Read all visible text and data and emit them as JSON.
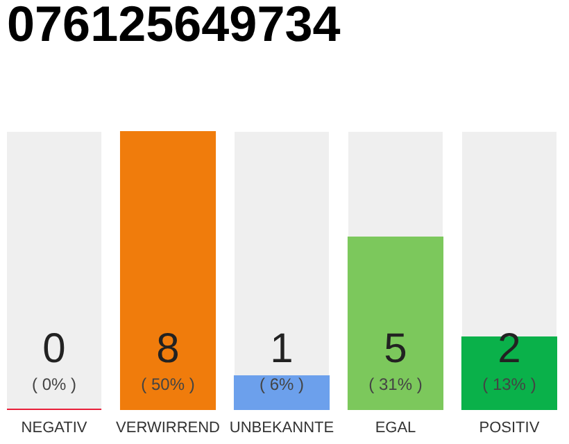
{
  "chart_data": {
    "type": "bar",
    "title": "076125649734",
    "categories": [
      "NEGATIV",
      "VERWIRREND",
      "UNBEKANNTE",
      "EGAL",
      "POSITIV"
    ],
    "values": [
      0,
      50,
      6,
      31,
      13
    ],
    "colors": [
      "#e8203a",
      "#f07c0c",
      "#6ca0ec",
      "#7cc85c",
      "#0ab14a"
    ],
    "tick_labels": "x",
    "value_labels": [
      "( 0% )",
      "( 50% )",
      "( 6% )",
      "( 31% )",
      "( 13% )"
    ],
    "annotations": [
      "0",
      "8",
      "1",
      "5",
      "2"
    ]
  }
}
